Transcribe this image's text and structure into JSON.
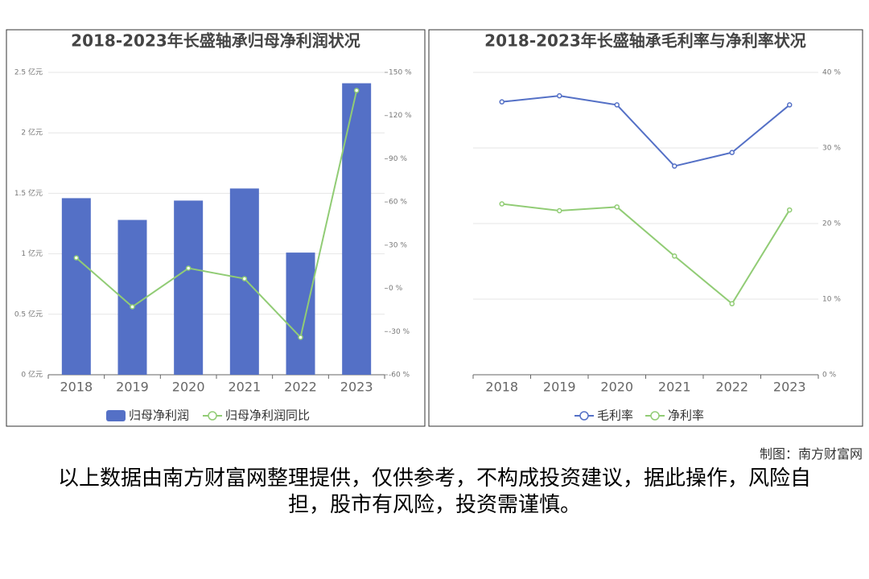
{
  "chart_data": [
    {
      "type": "combo",
      "title": "2018-2023年长盛轴承归母净利润状况",
      "categories": [
        "2018",
        "2019",
        "2020",
        "2021",
        "2022",
        "2023"
      ],
      "series": [
        {
          "name": "归母净利润",
          "type": "bar",
          "color": "#5470c6",
          "axis": "y",
          "values": [
            1.46,
            1.28,
            1.44,
            1.54,
            1.01,
            2.41
          ]
        },
        {
          "name": "归母净利润同比",
          "type": "line",
          "color": "#91cc75",
          "axis": "y2",
          "values": [
            21.2,
            -12.8,
            14,
            6.7,
            -34,
            137.4
          ]
        }
      ],
      "ylim": [
        0,
        2.5
      ],
      "yticks": [
        {
          "value": 0,
          "label": "0 亿元"
        },
        {
          "value": 0.5,
          "label": "0.5 亿元"
        },
        {
          "value": 1,
          "label": "1 亿元"
        },
        {
          "value": 1.5,
          "label": "1.5 亿元"
        },
        {
          "value": 2,
          "label": "2 亿元"
        },
        {
          "value": 2.5,
          "label": "2.5 亿元"
        }
      ],
      "y2lim": [
        -60,
        150
      ],
      "y2ticks": [
        {
          "value": -60,
          "label": "-60 %"
        },
        {
          "value": -30,
          "label": "-30 %"
        },
        {
          "value": 0,
          "label": "0 %"
        },
        {
          "value": 30,
          "label": "30 %"
        },
        {
          "value": 60,
          "label": "60 %"
        },
        {
          "value": 90,
          "label": "90 %"
        },
        {
          "value": 120,
          "label": "120 %"
        },
        {
          "value": 150,
          "label": "150 %"
        }
      ],
      "grid": true
    },
    {
      "type": "line",
      "title": "2018-2023年长盛轴承毛利率与净利率状况",
      "categories": [
        "2018",
        "2019",
        "2020",
        "2021",
        "2022",
        "2023"
      ],
      "series": [
        {
          "name": "毛利率",
          "type": "line",
          "color": "#5470c6",
          "values": [
            36.1,
            36.9,
            35.7,
            27.6,
            29.4,
            35.7
          ]
        },
        {
          "name": "净利率",
          "type": "line",
          "color": "#91cc75",
          "values": [
            22.6,
            21.7,
            22.2,
            15.7,
            9.4,
            21.8
          ]
        }
      ],
      "y_axis_position": "right",
      "ylim": [
        0,
        40
      ],
      "yticks": [
        {
          "value": 0,
          "label": "0 %"
        },
        {
          "value": 10,
          "label": "10 %"
        },
        {
          "value": 20,
          "label": "20 %"
        },
        {
          "value": 30,
          "label": "30 %"
        },
        {
          "value": 40,
          "label": "40 %"
        }
      ],
      "grid": true
    }
  ],
  "credit": "制图：南方财富网",
  "disclaimer": "以上数据由南方财富网整理提供，仅供参考，不构成投资建议，据此操作，风险自担，股市有风险，投资需谨慎。"
}
